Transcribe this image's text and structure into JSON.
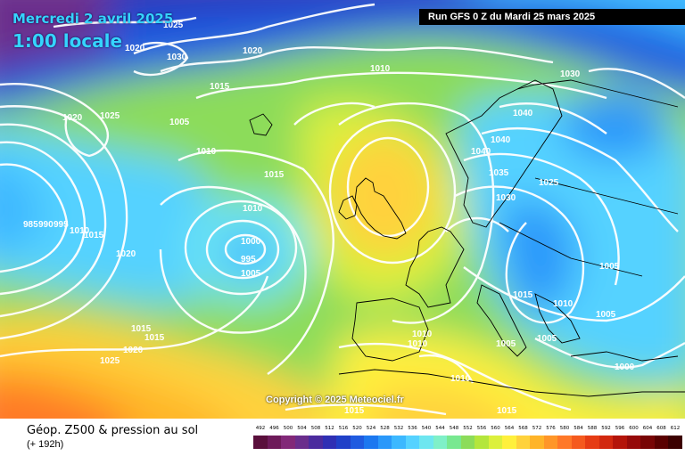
{
  "header": {
    "date": "Mercredi 2 avril 2025",
    "time": "1:00 locale",
    "run": "Run GFS 0 Z du Mardi 25 mars 2025"
  },
  "copyright": "Copyright © 2025 Meteociel.fr",
  "footer": {
    "title": "Géop. Z500 & pression au sol",
    "subtitle": "(+ 192h)"
  },
  "legend": {
    "labels": [
      "492",
      "496",
      "500",
      "504",
      "508",
      "512",
      "516",
      "520",
      "524",
      "528",
      "532",
      "536",
      "540",
      "544",
      "548",
      "552",
      "556",
      "560",
      "564",
      "568",
      "572",
      "576",
      "580",
      "584",
      "588",
      "592",
      "596",
      "600",
      "604",
      "608",
      "612"
    ],
    "colors": [
      "#5a0f3c",
      "#6e1a5a",
      "#822878",
      "#6a2d8c",
      "#4b2b9e",
      "#2f2fb4",
      "#2040c8",
      "#1f5be0",
      "#1c78f0",
      "#2a98fa",
      "#3cb8ff",
      "#55d2ff",
      "#6ee6f0",
      "#7ff0c8",
      "#78e890",
      "#8cdc5a",
      "#b4e63c",
      "#dcf03c",
      "#fff03c",
      "#ffd23c",
      "#ffb428",
      "#ff9628",
      "#ff7828",
      "#f55a1e",
      "#e63c14",
      "#d2280f",
      "#b4140a",
      "#960a0a",
      "#780505",
      "#5a0000",
      "#3c0000"
    ]
  },
  "isobar_labels": [
    "1025",
    "1030",
    "1020",
    "1020",
    "1025",
    "1005",
    "1015",
    "1010",
    "1020",
    "1030",
    "1040",
    "1040",
    "1040",
    "1035",
    "1030",
    "1025",
    "1010",
    "1015",
    "1010",
    "1000",
    "995",
    "1005",
    "985",
    "990",
    "995",
    "1010",
    "1015",
    "1020",
    "1015",
    "1015",
    "1020",
    "1025",
    "1010",
    "1010",
    "1005",
    "1015",
    "1005",
    "1005",
    "1010",
    "1005",
    "1000",
    "1015",
    "1010",
    "1015"
  ]
}
